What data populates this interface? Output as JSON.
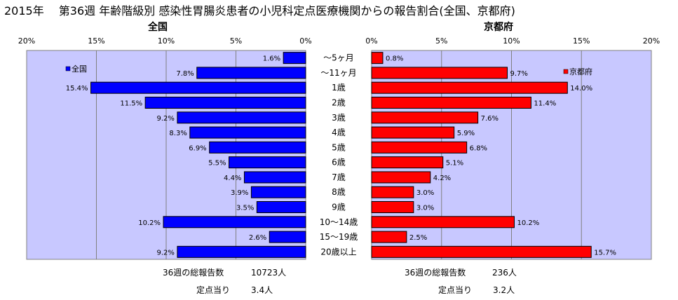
{
  "chart_title": "2015年　 第36週 年齢階級別 感染性胃腸炎患者の小児科定点医療機関からの報告割合(全国、京都府)",
  "chart_data": {
    "type": "bar",
    "categories": [
      "～5ヶ月",
      "～11ヶ月",
      "1歳",
      "2歳",
      "3歳",
      "4歳",
      "5歳",
      "6歳",
      "7歳",
      "8歳",
      "9歳",
      "10～14歳",
      "15～19歳",
      "20歳以上"
    ],
    "xlim": [
      0,
      20
    ],
    "ticks": [
      "0%",
      "5%",
      "10%",
      "15%",
      "20%"
    ],
    "grid": true,
    "series": [
      {
        "name": "全国",
        "panel_title": "全国",
        "color": "#0000ff",
        "values": [
          1.6,
          7.8,
          15.4,
          11.5,
          9.2,
          8.3,
          6.9,
          5.5,
          4.4,
          3.9,
          3.5,
          10.2,
          2.6,
          9.2
        ],
        "labels": [
          "1.6%",
          "7.8%",
          "15.4%",
          "11.5%",
          "9.2%",
          "8.3%",
          "6.9%",
          "5.5%",
          "4.4%",
          "3.9%",
          "3.5%",
          "10.2%",
          "2.6%",
          "9.2%"
        ],
        "legend_position": "top-left",
        "footer": [
          {
            "label": "36週の総報告数",
            "value": "10723人"
          },
          {
            "label": "定点当り",
            "value": "3.4人"
          }
        ]
      },
      {
        "name": "京都府",
        "panel_title": "京都府",
        "color": "#ff0000",
        "values": [
          0.8,
          9.7,
          14.0,
          11.4,
          7.6,
          5.9,
          6.8,
          5.1,
          4.2,
          3.0,
          3.0,
          10.2,
          2.5,
          15.7
        ],
        "labels": [
          "0.8%",
          "9.7%",
          "14.0%",
          "11.4%",
          "7.6%",
          "5.9%",
          "6.8%",
          "5.1%",
          "4.2%",
          "3.0%",
          "3.0%",
          "10.2%",
          "2.5%",
          "15.7%"
        ],
        "legend_position": "top-right",
        "footer": [
          {
            "label": "36週の総報告数",
            "value": "236人"
          },
          {
            "label": "定点当り",
            "value": "3.2人"
          }
        ]
      }
    ]
  }
}
